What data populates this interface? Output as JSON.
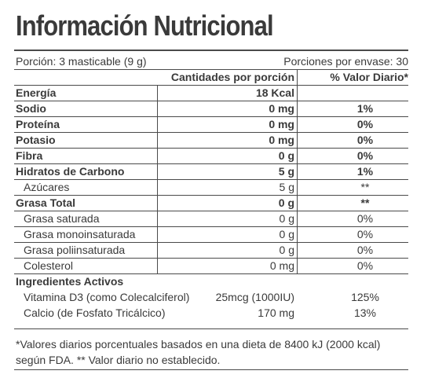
{
  "title": "Información Nutricional",
  "serving": "Porción: 3 masticable (9 g)",
  "servings_per_container": "Porciones por envase: 30",
  "header": {
    "amount": "Cantidades por porción",
    "daily_value": "% Valor Diario*"
  },
  "rows": [
    {
      "label": "Energía",
      "amount": "18 Kcal",
      "dv": "",
      "bold": true,
      "indent": false
    },
    {
      "label": "Sodio",
      "amount": "0 mg",
      "dv": "1%",
      "bold": true,
      "indent": false
    },
    {
      "label": "Proteína",
      "amount": "0 mg",
      "dv": "0%",
      "bold": true,
      "indent": false
    },
    {
      "label": "Potasio",
      "amount": "0 mg",
      "dv": "0%",
      "bold": true,
      "indent": false
    },
    {
      "label": "Fibra",
      "amount": "0 g",
      "dv": "0%",
      "bold": true,
      "indent": false
    },
    {
      "label": "Hidratos de Carbono",
      "amount": "5 g",
      "dv": "1%",
      "bold": true,
      "indent": false
    },
    {
      "label": "Azúcares",
      "amount": "5 g",
      "dv": "**",
      "bold": false,
      "indent": true
    },
    {
      "label": "Grasa Total",
      "amount": "0 g",
      "dv": "**",
      "bold": true,
      "indent": false
    },
    {
      "label": "Grasa saturada",
      "amount": "0 g",
      "dv": "0%",
      "bold": false,
      "indent": true
    },
    {
      "label": "Grasa monoinsaturada",
      "amount": "0 g",
      "dv": "0%",
      "bold": false,
      "indent": true
    },
    {
      "label": "Grasa poliinsaturada",
      "amount": "0 g",
      "dv": "0%",
      "bold": false,
      "indent": true
    },
    {
      "label": "Colesterol",
      "amount": "0 mg",
      "dv": "0%",
      "bold": false,
      "indent": true
    }
  ],
  "active_ingredients": {
    "heading": "Ingredientes Activos",
    "items": [
      {
        "label": "Vitamina D3 (como Colecalciferol)",
        "amount": "25mcg (1000IU)",
        "dv": "125%"
      },
      {
        "label": "Calcio (de Fosfato Tricálcico)",
        "amount": "170 mg",
        "dv": "13%"
      }
    ]
  },
  "footnote": {
    "line1": "*Valores diarios porcentuales basados en una dieta de 8400 kJ (2000 kcal)",
    "line2": "según FDA. ** Valor diario no establecido."
  }
}
